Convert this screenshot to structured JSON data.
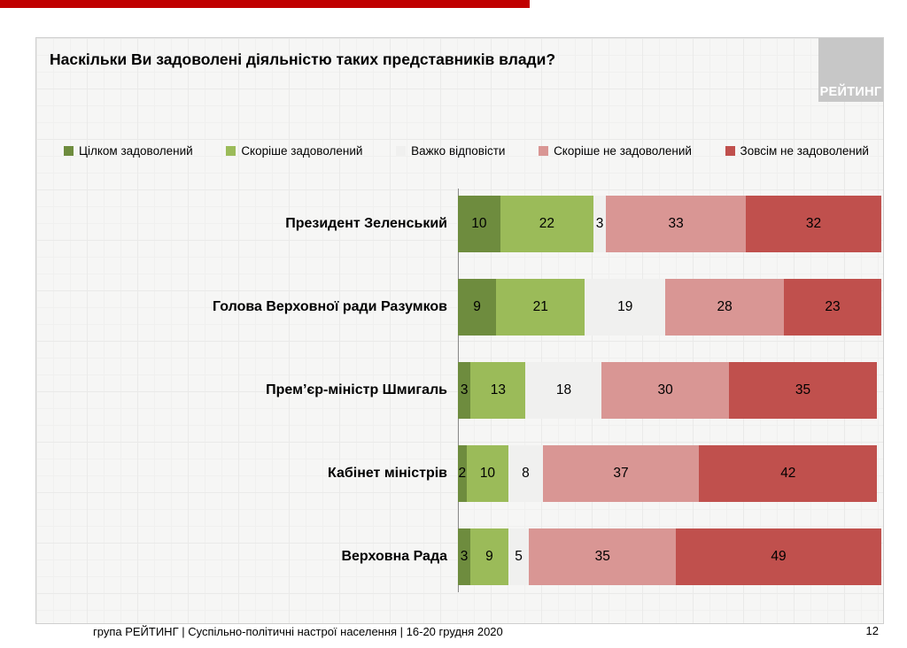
{
  "page": {
    "accent_bar_color": "#C00000"
  },
  "slide": {
    "title": "Наскільки Ви задоволені діяльністю таких представників влади?",
    "logo_text": "РЕЙТИНГ",
    "logo_bg": "#C7C7C7"
  },
  "chart_data": {
    "type": "bar",
    "stacked": true,
    "orientation": "horizontal",
    "unit": "%",
    "xlim": [
      0,
      100
    ],
    "legend_position": "top",
    "grid": false,
    "categories": [
      "Президент Зеленський",
      "Голова Верховної ради Разумков",
      "Прем’єр-міністр Шмигаль",
      "Кабінет міністрів",
      "Верховна Рада"
    ],
    "series": [
      {
        "name": "Цілком задоволений",
        "color": "#6E8C3E",
        "values": [
          10,
          9,
          3,
          2,
          3
        ]
      },
      {
        "name": "Скоріше задоволений",
        "color": "#9BBB59",
        "values": [
          22,
          21,
          13,
          10,
          9
        ]
      },
      {
        "name": "Важко відповісти",
        "color": "#F0F0EF",
        "values": [
          3,
          19,
          18,
          8,
          5
        ]
      },
      {
        "name": "Скоріше не задоволений",
        "color": "#D99694",
        "values": [
          33,
          28,
          30,
          37,
          35
        ]
      },
      {
        "name": "Зовсім не задоволений",
        "color": "#C0504D",
        "values": [
          32,
          23,
          35,
          42,
          49
        ]
      }
    ]
  },
  "footer": {
    "source_line": "група РЕЙТИНГ | Суспільно-політичні настрої населення | 16-20 грудня 2020",
    "page_number": "12"
  }
}
